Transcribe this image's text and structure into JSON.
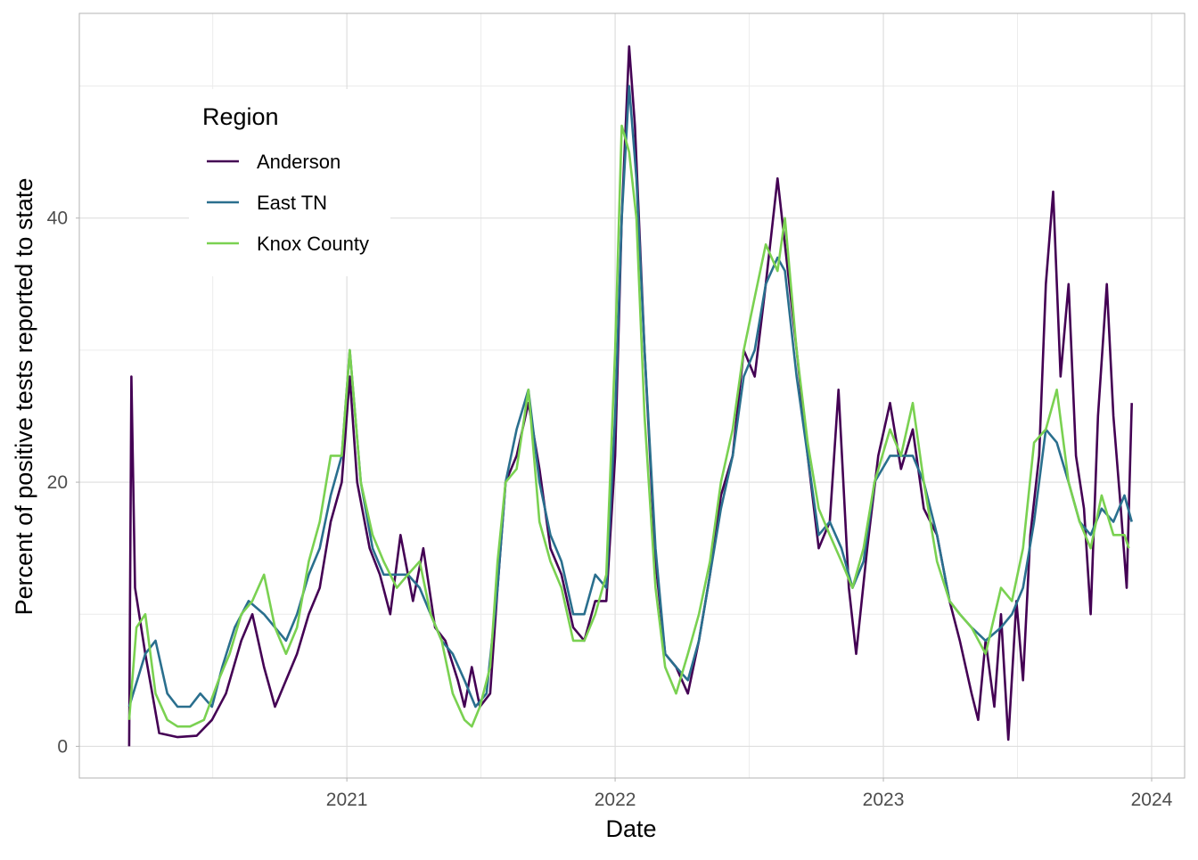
{
  "chart_data": {
    "type": "line",
    "title": "",
    "xlabel": "Date",
    "ylabel": "Percent of positive tests reported to state",
    "xlim": [
      "2020-01-02",
      "2024-02-15"
    ],
    "ylim": [
      -2.4,
      55.5
    ],
    "x_ticks": [
      "2021",
      "2022",
      "2023",
      "2024"
    ],
    "y_ticks": [
      0,
      20,
      40
    ],
    "grid": true,
    "legend": {
      "title": "Region",
      "placement": "top-left"
    },
    "series": [
      {
        "name": "Anderson",
        "color": "#440154",
        "points": [
          [
            "2020-03-10",
            0
          ],
          [
            "2020-03-13",
            28
          ],
          [
            "2020-03-18",
            12
          ],
          [
            "2020-04-01",
            7
          ],
          [
            "2020-04-20",
            1
          ],
          [
            "2020-05-15",
            0.7
          ],
          [
            "2020-06-10",
            0.8
          ],
          [
            "2020-07-01",
            2
          ],
          [
            "2020-07-20",
            4
          ],
          [
            "2020-08-10",
            8
          ],
          [
            "2020-08-25",
            10
          ],
          [
            "2020-09-10",
            6
          ],
          [
            "2020-09-25",
            3
          ],
          [
            "2020-10-10",
            5
          ],
          [
            "2020-10-25",
            7
          ],
          [
            "2020-11-10",
            10
          ],
          [
            "2020-11-25",
            12
          ],
          [
            "2020-12-10",
            17
          ],
          [
            "2020-12-25",
            20
          ],
          [
            "2021-01-05",
            28
          ],
          [
            "2021-01-15",
            20
          ],
          [
            "2021-02-01",
            15
          ],
          [
            "2021-02-15",
            13
          ],
          [
            "2021-03-01",
            10
          ],
          [
            "2021-03-15",
            16
          ],
          [
            "2021-04-01",
            11
          ],
          [
            "2021-04-15",
            15
          ],
          [
            "2021-05-01",
            9
          ],
          [
            "2021-05-15",
            8
          ],
          [
            "2021-06-01",
            5
          ],
          [
            "2021-06-10",
            3
          ],
          [
            "2021-06-20",
            6
          ],
          [
            "2021-07-01",
            3
          ],
          [
            "2021-07-15",
            4
          ],
          [
            "2021-07-25",
            12
          ],
          [
            "2021-08-05",
            20
          ],
          [
            "2021-08-20",
            22
          ],
          [
            "2021-09-05",
            26
          ],
          [
            "2021-09-20",
            21
          ],
          [
            "2021-10-05",
            15
          ],
          [
            "2021-10-20",
            13
          ],
          [
            "2021-11-05",
            9
          ],
          [
            "2021-11-20",
            8
          ],
          [
            "2021-12-05",
            11
          ],
          [
            "2021-12-20",
            11
          ],
          [
            "2022-01-01",
            22
          ],
          [
            "2022-01-10",
            40
          ],
          [
            "2022-01-20",
            53
          ],
          [
            "2022-01-28",
            47
          ],
          [
            "2022-02-10",
            30
          ],
          [
            "2022-02-25",
            14
          ],
          [
            "2022-03-10",
            7
          ],
          [
            "2022-03-25",
            6
          ],
          [
            "2022-04-10",
            4
          ],
          [
            "2022-04-25",
            8
          ],
          [
            "2022-05-10",
            13
          ],
          [
            "2022-05-25",
            19
          ],
          [
            "2022-06-10",
            22
          ],
          [
            "2022-06-25",
            30
          ],
          [
            "2022-07-10",
            28
          ],
          [
            "2022-07-25",
            35
          ],
          [
            "2022-08-10",
            43
          ],
          [
            "2022-08-20",
            38
          ],
          [
            "2022-09-05",
            30
          ],
          [
            "2022-09-20",
            22
          ],
          [
            "2022-10-05",
            15
          ],
          [
            "2022-10-20",
            17
          ],
          [
            "2022-11-01",
            27
          ],
          [
            "2022-11-15",
            12
          ],
          [
            "2022-11-25",
            7
          ],
          [
            "2022-12-10",
            15
          ],
          [
            "2022-12-25",
            22
          ],
          [
            "2023-01-10",
            26
          ],
          [
            "2023-01-25",
            21
          ],
          [
            "2023-02-10",
            24
          ],
          [
            "2023-02-25",
            18
          ],
          [
            "2023-03-15",
            16
          ],
          [
            "2023-04-01",
            11
          ],
          [
            "2023-04-15",
            8
          ],
          [
            "2023-05-01",
            4
          ],
          [
            "2023-05-10",
            2
          ],
          [
            "2023-05-20",
            8
          ],
          [
            "2023-06-01",
            3
          ],
          [
            "2023-06-10",
            10
          ],
          [
            "2023-06-20",
            0.5
          ],
          [
            "2023-07-01",
            11
          ],
          [
            "2023-07-10",
            5
          ],
          [
            "2023-07-20",
            16
          ],
          [
            "2023-08-01",
            22
          ],
          [
            "2023-08-10",
            35
          ],
          [
            "2023-08-20",
            42
          ],
          [
            "2023-08-30",
            28
          ],
          [
            "2023-09-10",
            35
          ],
          [
            "2023-09-20",
            22
          ],
          [
            "2023-10-01",
            18
          ],
          [
            "2023-10-10",
            10
          ],
          [
            "2023-10-20",
            25
          ],
          [
            "2023-11-01",
            35
          ],
          [
            "2023-11-10",
            25
          ],
          [
            "2023-11-20",
            18
          ],
          [
            "2023-11-28",
            12
          ],
          [
            "2023-12-05",
            26
          ]
        ]
      },
      {
        "name": "East TN",
        "color": "#2A6F8E",
        "points": [
          [
            "2020-03-10",
            3
          ],
          [
            "2020-04-01",
            7
          ],
          [
            "2020-04-15",
            8
          ],
          [
            "2020-05-01",
            4
          ],
          [
            "2020-05-15",
            3
          ],
          [
            "2020-06-01",
            3
          ],
          [
            "2020-06-15",
            4
          ],
          [
            "2020-07-01",
            3
          ],
          [
            "2020-07-15",
            6
          ],
          [
            "2020-08-01",
            9
          ],
          [
            "2020-08-20",
            11
          ],
          [
            "2020-09-10",
            10
          ],
          [
            "2020-09-25",
            9
          ],
          [
            "2020-10-10",
            8
          ],
          [
            "2020-10-25",
            10
          ],
          [
            "2020-11-10",
            13
          ],
          [
            "2020-11-25",
            15
          ],
          [
            "2020-12-10",
            19
          ],
          [
            "2020-12-25",
            22
          ],
          [
            "2021-01-05",
            30
          ],
          [
            "2021-01-20",
            20
          ],
          [
            "2021-02-05",
            15
          ],
          [
            "2021-02-20",
            13
          ],
          [
            "2021-03-10",
            13
          ],
          [
            "2021-03-25",
            13
          ],
          [
            "2021-04-10",
            12
          ],
          [
            "2021-04-25",
            10
          ],
          [
            "2021-05-10",
            8
          ],
          [
            "2021-05-25",
            7
          ],
          [
            "2021-06-10",
            5
          ],
          [
            "2021-06-25",
            3
          ],
          [
            "2021-07-10",
            4
          ],
          [
            "2021-07-25",
            12
          ],
          [
            "2021-08-05",
            20
          ],
          [
            "2021-08-20",
            24
          ],
          [
            "2021-09-05",
            27
          ],
          [
            "2021-09-20",
            20
          ],
          [
            "2021-10-05",
            16
          ],
          [
            "2021-10-20",
            14
          ],
          [
            "2021-11-05",
            10
          ],
          [
            "2021-11-20",
            10
          ],
          [
            "2021-12-05",
            13
          ],
          [
            "2021-12-20",
            12
          ],
          [
            "2022-01-01",
            25
          ],
          [
            "2022-01-10",
            40
          ],
          [
            "2022-01-20",
            50
          ],
          [
            "2022-01-30",
            43
          ],
          [
            "2022-02-10",
            30
          ],
          [
            "2022-02-25",
            15
          ],
          [
            "2022-03-10",
            7
          ],
          [
            "2022-03-25",
            6
          ],
          [
            "2022-04-10",
            5
          ],
          [
            "2022-04-25",
            8
          ],
          [
            "2022-05-10",
            13
          ],
          [
            "2022-05-25",
            18
          ],
          [
            "2022-06-10",
            22
          ],
          [
            "2022-06-25",
            28
          ],
          [
            "2022-07-10",
            30
          ],
          [
            "2022-07-25",
            35
          ],
          [
            "2022-08-10",
            37
          ],
          [
            "2022-08-20",
            36
          ],
          [
            "2022-09-05",
            28
          ],
          [
            "2022-09-20",
            22
          ],
          [
            "2022-10-05",
            16
          ],
          [
            "2022-10-20",
            17
          ],
          [
            "2022-11-05",
            15
          ],
          [
            "2022-11-20",
            12
          ],
          [
            "2022-12-05",
            14
          ],
          [
            "2022-12-20",
            20
          ],
          [
            "2023-01-10",
            22
          ],
          [
            "2023-01-25",
            22
          ],
          [
            "2023-02-10",
            22
          ],
          [
            "2023-02-25",
            20
          ],
          [
            "2023-03-15",
            16
          ],
          [
            "2023-04-01",
            11
          ],
          [
            "2023-04-15",
            10
          ],
          [
            "2023-05-01",
            9
          ],
          [
            "2023-05-20",
            8
          ],
          [
            "2023-06-10",
            9
          ],
          [
            "2023-06-25",
            10
          ],
          [
            "2023-07-10",
            12
          ],
          [
            "2023-07-25",
            17
          ],
          [
            "2023-08-10",
            24
          ],
          [
            "2023-08-25",
            23
          ],
          [
            "2023-09-10",
            20
          ],
          [
            "2023-09-25",
            17
          ],
          [
            "2023-10-10",
            16
          ],
          [
            "2023-10-25",
            18
          ],
          [
            "2023-11-10",
            17
          ],
          [
            "2023-11-25",
            19
          ],
          [
            "2023-12-05",
            17
          ]
        ]
      },
      {
        "name": "Knox County",
        "color": "#7AD151",
        "points": [
          [
            "2020-03-10",
            2
          ],
          [
            "2020-03-20",
            9
          ],
          [
            "2020-04-01",
            10
          ],
          [
            "2020-04-15",
            4
          ],
          [
            "2020-05-01",
            2
          ],
          [
            "2020-05-15",
            1.5
          ],
          [
            "2020-06-01",
            1.5
          ],
          [
            "2020-06-20",
            2
          ],
          [
            "2020-07-10",
            5
          ],
          [
            "2020-07-25",
            7
          ],
          [
            "2020-08-10",
            10
          ],
          [
            "2020-08-25",
            11
          ],
          [
            "2020-09-10",
            13
          ],
          [
            "2020-09-25",
            9
          ],
          [
            "2020-10-10",
            7
          ],
          [
            "2020-10-25",
            9
          ],
          [
            "2020-11-10",
            14
          ],
          [
            "2020-11-25",
            17
          ],
          [
            "2020-12-10",
            22
          ],
          [
            "2020-12-25",
            22
          ],
          [
            "2021-01-05",
            30
          ],
          [
            "2021-01-20",
            20
          ],
          [
            "2021-02-05",
            16
          ],
          [
            "2021-02-20",
            14
          ],
          [
            "2021-03-10",
            12
          ],
          [
            "2021-03-25",
            13
          ],
          [
            "2021-04-10",
            14
          ],
          [
            "2021-04-25",
            10
          ],
          [
            "2021-05-10",
            8
          ],
          [
            "2021-05-25",
            4
          ],
          [
            "2021-06-10",
            2
          ],
          [
            "2021-06-20",
            1.5
          ],
          [
            "2021-07-01",
            3
          ],
          [
            "2021-07-15",
            6
          ],
          [
            "2021-07-25",
            14
          ],
          [
            "2021-08-05",
            20
          ],
          [
            "2021-08-20",
            21
          ],
          [
            "2021-09-05",
            27
          ],
          [
            "2021-09-20",
            17
          ],
          [
            "2021-10-05",
            14
          ],
          [
            "2021-10-20",
            12
          ],
          [
            "2021-11-05",
            8
          ],
          [
            "2021-11-20",
            8
          ],
          [
            "2021-12-05",
            10
          ],
          [
            "2021-12-20",
            13
          ],
          [
            "2022-01-01",
            30
          ],
          [
            "2022-01-10",
            47
          ],
          [
            "2022-01-20",
            45
          ],
          [
            "2022-01-30",
            40
          ],
          [
            "2022-02-10",
            25
          ],
          [
            "2022-02-25",
            12
          ],
          [
            "2022-03-10",
            6
          ],
          [
            "2022-03-25",
            4
          ],
          [
            "2022-04-10",
            7
          ],
          [
            "2022-04-25",
            10
          ],
          [
            "2022-05-10",
            14
          ],
          [
            "2022-05-25",
            20
          ],
          [
            "2022-06-10",
            24
          ],
          [
            "2022-06-25",
            30
          ],
          [
            "2022-07-10",
            34
          ],
          [
            "2022-07-25",
            38
          ],
          [
            "2022-08-10",
            36
          ],
          [
            "2022-08-20",
            40
          ],
          [
            "2022-09-05",
            30
          ],
          [
            "2022-09-20",
            23
          ],
          [
            "2022-10-05",
            18
          ],
          [
            "2022-10-20",
            16
          ],
          [
            "2022-11-05",
            14
          ],
          [
            "2022-11-20",
            12
          ],
          [
            "2022-12-05",
            15
          ],
          [
            "2022-12-20",
            20
          ],
          [
            "2023-01-10",
            24
          ],
          [
            "2023-01-25",
            22
          ],
          [
            "2023-02-10",
            26
          ],
          [
            "2023-02-25",
            20
          ],
          [
            "2023-03-15",
            14
          ],
          [
            "2023-04-01",
            11
          ],
          [
            "2023-04-15",
            10
          ],
          [
            "2023-05-01",
            9
          ],
          [
            "2023-05-20",
            7
          ],
          [
            "2023-06-10",
            12
          ],
          [
            "2023-06-25",
            11
          ],
          [
            "2023-07-10",
            15
          ],
          [
            "2023-07-25",
            23
          ],
          [
            "2023-08-10",
            24
          ],
          [
            "2023-08-25",
            27
          ],
          [
            "2023-09-10",
            20
          ],
          [
            "2023-09-25",
            17
          ],
          [
            "2023-10-10",
            15
          ],
          [
            "2023-10-25",
            19
          ],
          [
            "2023-11-10",
            16
          ],
          [
            "2023-11-25",
            16
          ],
          [
            "2023-12-01",
            15
          ]
        ]
      }
    ]
  }
}
